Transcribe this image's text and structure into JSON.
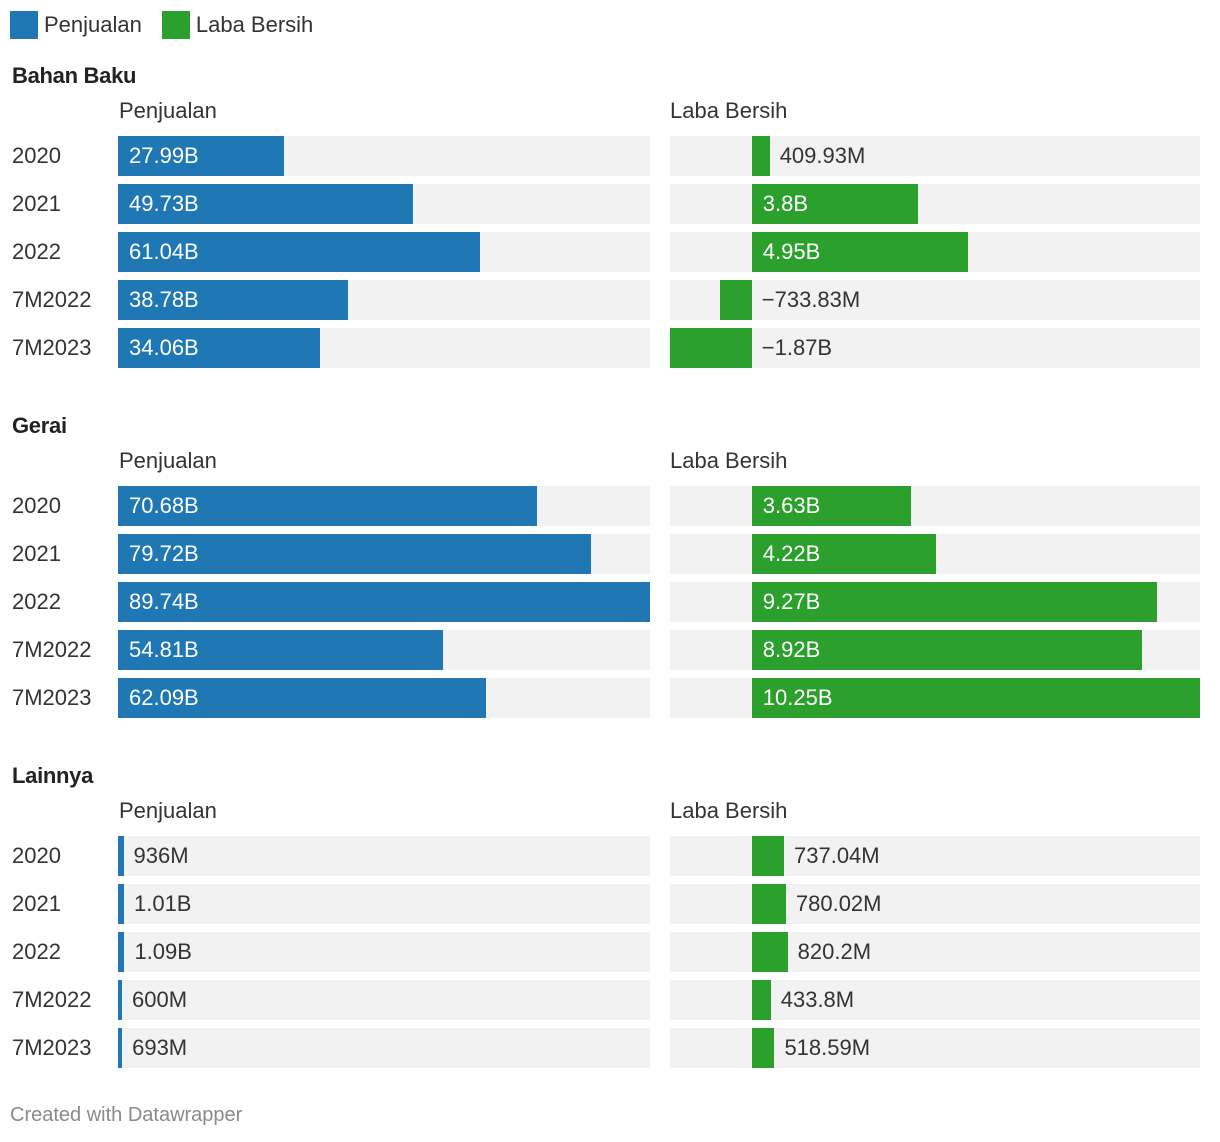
{
  "legend": [
    {
      "label": "Penjualan",
      "color": "#1f77b4"
    },
    {
      "label": "Laba Bersih",
      "color": "#2ca02c"
    }
  ],
  "footer": "Created with Datawrapper",
  "chart_data": {
    "type": "bar",
    "colors": {
      "Penjualan": "#1f77b4",
      "Laba Bersih": "#2ca02c",
      "background": "#f2f2f2"
    },
    "panels": [
      {
        "title": "Bahan Baku",
        "categories": [
          "2020",
          "2021",
          "2022",
          "7M2022",
          "7M2023"
        ],
        "series": [
          {
            "name": "Penjualan",
            "values": [
              27.99,
              49.73,
              61.04,
              38.78,
              34.06
            ],
            "labels": [
              "27.99B",
              "49.73B",
              "61.04B",
              "38.78B",
              "34.06B"
            ]
          },
          {
            "name": "Laba Bersih",
            "values": [
              0.40993,
              3.8,
              4.95,
              -0.73383,
              -1.87
            ],
            "labels": [
              "409.93M",
              "3.8B",
              "4.95B",
              "−733.83M",
              "−1.87B"
            ]
          }
        ]
      },
      {
        "title": "Gerai",
        "categories": [
          "2020",
          "2021",
          "2022",
          "7M2022",
          "7M2023"
        ],
        "series": [
          {
            "name": "Penjualan",
            "values": [
              70.68,
              79.72,
              89.74,
              54.81,
              62.09
            ],
            "labels": [
              "70.68B",
              "79.72B",
              "89.74B",
              "54.81B",
              "62.09B"
            ]
          },
          {
            "name": "Laba Bersih",
            "values": [
              3.63,
              4.22,
              9.27,
              8.92,
              10.25
            ],
            "labels": [
              "3.63B",
              "4.22B",
              "9.27B",
              "8.92B",
              "10.25B"
            ]
          }
        ]
      },
      {
        "title": "Lainnya",
        "categories": [
          "2020",
          "2021",
          "2022",
          "7M2022",
          "7M2023"
        ],
        "series": [
          {
            "name": "Penjualan",
            "values": [
              0.936,
              1.01,
              1.09,
              0.6,
              0.693
            ],
            "labels": [
              "936M",
              "1.01B",
              "1.09B",
              "600M",
              "693M"
            ]
          },
          {
            "name": "Laba Bersih",
            "values": [
              0.73704,
              0.78002,
              0.8202,
              0.4338,
              0.51859
            ],
            "labels": [
              "737.04M",
              "780.02M",
              "820.2M",
              "433.8M",
              "518.59M"
            ]
          }
        ]
      }
    ],
    "axes": {
      "Penjualan": {
        "min": 0,
        "max": 89.74,
        "unit": "B"
      },
      "Laba Bersih": {
        "min": -1.87,
        "max": 10.25,
        "unit": "B"
      }
    }
  }
}
